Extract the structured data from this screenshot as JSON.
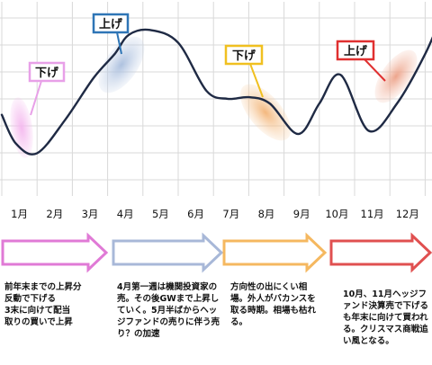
{
  "chart_data": {
    "type": "line",
    "title": "",
    "xlabel": "",
    "ylabel": "",
    "grid": true,
    "x_positions": [
      0.0,
      0.4,
      1.0,
      1.8,
      2.6,
      3.2,
      3.6,
      4.2,
      5.0,
      5.8,
      6.4,
      7.0,
      7.6,
      8.4,
      9.0,
      9.6,
      10.4,
      11.2,
      12.0,
      12.5
    ],
    "values": [
      0.35,
      0.17,
      0.11,
      0.32,
      0.58,
      0.73,
      0.85,
      0.88,
      0.8,
      0.5,
      0.45,
      0.46,
      0.42,
      0.23,
      0.42,
      0.6,
      0.25,
      0.42,
      0.73,
      0.99
    ],
    "ylim": [
      0,
      1
    ],
    "months": [
      "1月",
      "2月",
      "3月",
      "4月",
      "5月",
      "6月",
      "7月",
      "8月",
      "9月",
      "10月",
      "11月",
      "12月"
    ],
    "callouts": [
      {
        "text": "下げ",
        "color": "#e8a0e8"
      },
      {
        "text": "上げ",
        "color": "#2e75b6"
      },
      {
        "text": "下げ",
        "color": "#f0c020"
      },
      {
        "text": "上げ",
        "color": "#e03030"
      }
    ],
    "period_notes": [
      {
        "text": "前年末までの上昇分\n反動で下げる\n3末に向けて配当\n取りの買いで上昇",
        "arrow_color": "#e07ad6"
      },
      {
        "text": "4月第一週は機関投資家の売。その後GWまで上昇していく。5月半ばからヘッジファンドの売りに伴う売り？の加速",
        "arrow_color": "#a8b8d8"
      },
      {
        "text": "方向性の出にくい相場。外人がバカンスを取る時期。相場も枯れる。",
        "arrow_color": "#f5b860"
      },
      {
        "text": "10月、11月ヘッジファンド決算売で下げるも年末に向けて買われる。クリスマス商戦追い風となる。",
        "arrow_color": "#e05050"
      }
    ]
  }
}
